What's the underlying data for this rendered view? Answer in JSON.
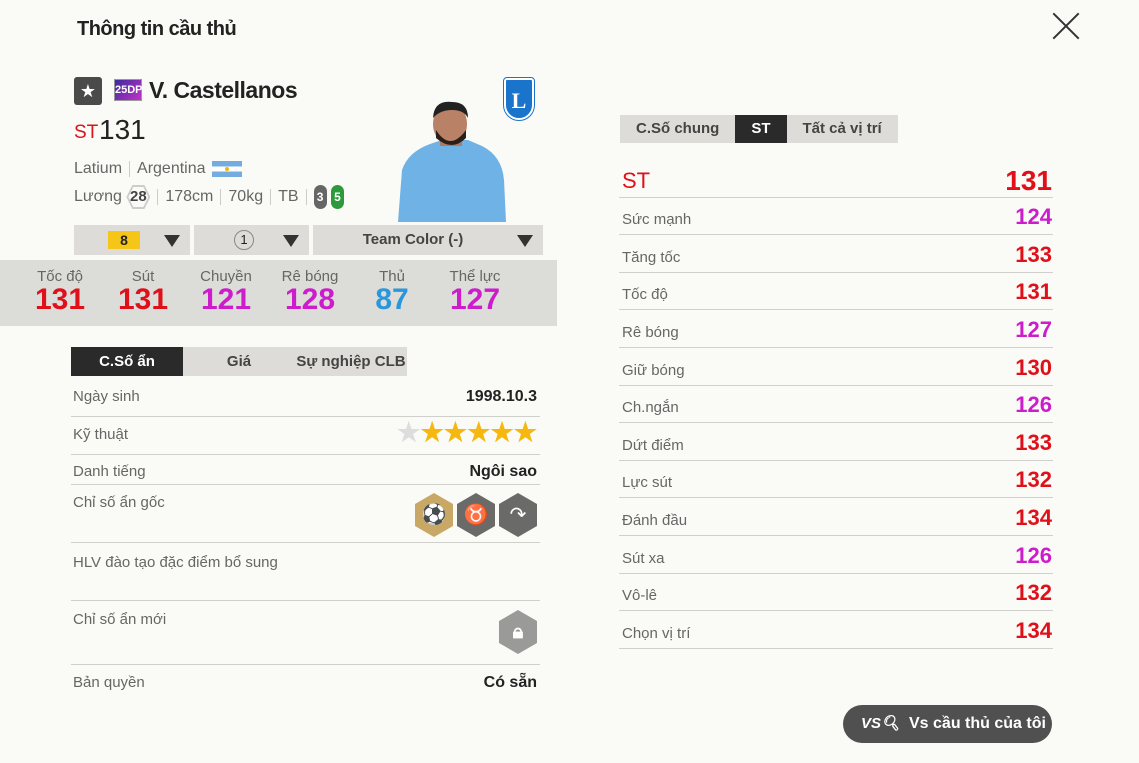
{
  "header": {
    "title": "Thông tin cầu thủ"
  },
  "player": {
    "name": "V. Castellanos",
    "season_badge": "25DP",
    "position": "ST",
    "ovr": "131",
    "club": "Latium",
    "nation": "Argentina",
    "salary_label": "Lương",
    "salary": "28",
    "height": "178cm",
    "weight": "70kg",
    "body": "TB",
    "weak_foot_left": "3",
    "weak_foot_right": "5",
    "club_crest_letter": "L"
  },
  "selectors": {
    "upgrade": "8",
    "level": "1",
    "team_color": "Team Color (-)"
  },
  "summary": [
    {
      "label": "Tốc độ",
      "value": "131",
      "color": "#e0101a"
    },
    {
      "label": "Sút",
      "value": "131",
      "color": "#e0101a"
    },
    {
      "label": "Chuyền",
      "value": "121",
      "color": "#cc1ccc"
    },
    {
      "label": "Rê bóng",
      "value": "128",
      "color": "#cc1ccc"
    },
    {
      "label": "Thủ",
      "value": "87",
      "color": "#2a96dc"
    },
    {
      "label": "Thể lực",
      "value": "127",
      "color": "#cc1ccc"
    }
  ],
  "left_tabs": [
    "C.Số ẩn",
    "Giá",
    "Sự nghiệp CLB"
  ],
  "info": {
    "birth_label": "Ngày sinh",
    "birth": "1998.10.3",
    "skill_label": "Kỹ thuật",
    "skill_stars": 5,
    "skill_max": 6,
    "fame_label": "Danh tiếng",
    "fame": "Ngôi sao",
    "traits_label": "Chỉ số ẩn gốc",
    "coach_label": "HLV đào tạo đặc điểm bổ sung",
    "new_traits_label": "Chỉ số ẩn mới",
    "license_label": "Bản quyền",
    "license": "Có sẵn"
  },
  "traits": [
    "bicycle-kick-icon",
    "buffalo-icon",
    "curl-shot-icon"
  ],
  "right_tabs": [
    "C.Số chung",
    "ST",
    "Tất cả vị trí"
  ],
  "pos_header": {
    "label": "ST",
    "value": "131"
  },
  "stats": [
    {
      "label": "Sức mạnh",
      "value": "124",
      "color": "#cc1ccc"
    },
    {
      "label": "Tăng tốc",
      "value": "133",
      "color": "#e0101a"
    },
    {
      "label": "Tốc độ",
      "value": "131",
      "color": "#e0101a"
    },
    {
      "label": "Rê bóng",
      "value": "127",
      "color": "#cc1ccc"
    },
    {
      "label": "Giữ bóng",
      "value": "130",
      "color": "#e0101a"
    },
    {
      "label": "Ch.ngắn",
      "value": "126",
      "color": "#cc1ccc"
    },
    {
      "label": "Dứt điểm",
      "value": "133",
      "color": "#e0101a"
    },
    {
      "label": "Lực sút",
      "value": "132",
      "color": "#e0101a"
    },
    {
      "label": "Đánh đầu",
      "value": "134",
      "color": "#e0101a"
    },
    {
      "label": "Sút xa",
      "value": "126",
      "color": "#cc1ccc"
    },
    {
      "label": "Vô-lê",
      "value": "132",
      "color": "#e0101a"
    },
    {
      "label": "Chọn vị trí",
      "value": "134",
      "color": "#e0101a"
    }
  ],
  "compare_button": {
    "icon": "vs-search-icon",
    "label": "Vs cầu thủ của tôi"
  }
}
